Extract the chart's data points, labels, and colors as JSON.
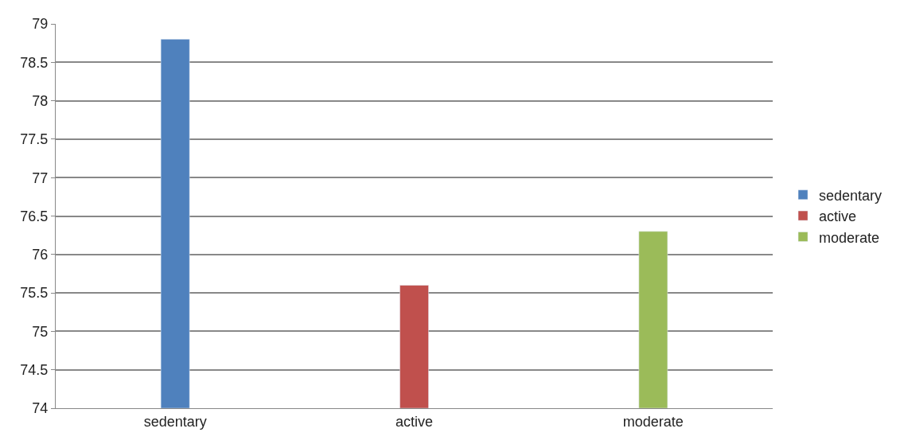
{
  "chart_data": {
    "type": "bar",
    "categories": [
      "sedentary",
      "active",
      "moderate"
    ],
    "series": [
      {
        "name": "sedentary",
        "color": "#4f81bd",
        "values": [
          78.8,
          null,
          null
        ]
      },
      {
        "name": "active",
        "color": "#c0504d",
        "values": [
          null,
          75.6,
          null
        ]
      },
      {
        "name": "moderate",
        "color": "#9bbb59",
        "values": [
          null,
          null,
          76.3
        ]
      }
    ],
    "ylim": [
      74,
      79
    ],
    "yticks": [
      74,
      74.5,
      75,
      75.5,
      76,
      76.5,
      77,
      77.5,
      78,
      78.5,
      79
    ],
    "grid": "y",
    "legend": "right"
  }
}
